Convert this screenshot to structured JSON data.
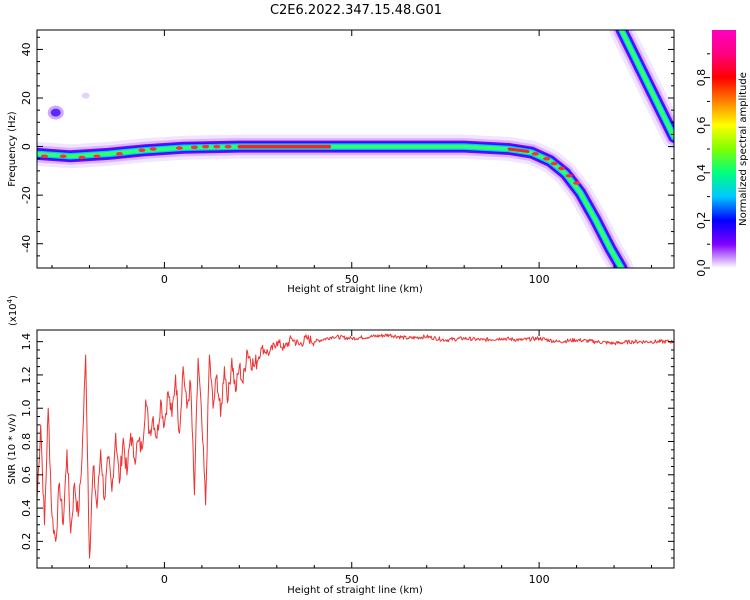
{
  "title": "C2E6.2022.347.15.48.G01",
  "chart_data": [
    {
      "type": "heatmap",
      "xlabel": "Height of straight line (km)",
      "ylabel": "Frequency (Hz)",
      "xlim": [
        -34,
        136
      ],
      "ylim": [
        -50,
        48
      ],
      "xticks": [
        0,
        50,
        100
      ],
      "yticks": [
        -40,
        -20,
        0,
        20,
        40
      ],
      "colorbar": {
        "label": "Normalized spectral amplitude",
        "range": [
          0,
          1
        ],
        "ticks": [
          "0.0",
          "0.2",
          "0.4",
          "0.6",
          "0.8"
        ],
        "colors": [
          "#ffffff",
          "#8000ff",
          "#0000ff",
          "#00c8ff",
          "#00ff80",
          "#80ff00",
          "#ffff00",
          "#ff8000",
          "#ff0000",
          "#ff0080",
          "#ff00c0"
        ]
      },
      "ridges": [
        {
          "name": "main",
          "points": [
            [
              -34,
              -3
            ],
            [
              -25,
              -4
            ],
            [
              -15,
              -3
            ],
            [
              -5,
              -1.5
            ],
            [
              5,
              -0.5
            ],
            [
              20,
              0
            ],
            [
              50,
              0
            ],
            [
              80,
              0
            ],
            [
              92,
              -1
            ],
            [
              98,
              -2.5
            ],
            [
              103,
              -6
            ],
            [
              107,
              -11
            ],
            [
              111,
              -19
            ],
            [
              115,
              -30
            ],
            [
              119,
              -42
            ],
            [
              122,
              -50
            ]
          ]
        },
        {
          "name": "upper-right",
          "points": [
            [
              122,
              48
            ],
            [
              136,
              4
            ]
          ]
        }
      ],
      "blobs": [
        {
          "x": -29,
          "y": 14,
          "amplitude": 0.2
        },
        {
          "x": -21,
          "y": 21,
          "amplitude": 0.05
        }
      ]
    },
    {
      "type": "line",
      "xlabel": "Height of straight line (km)",
      "ylabel": "SNR (10 * v/v)",
      "y_multiplier": "(x10",
      "y_multiplier_exp": "4",
      "y_multiplier_close": ")",
      "xlim": [
        -34,
        136
      ],
      "ylim": [
        0.04,
        1.47
      ],
      "xticks": [
        0,
        50,
        100
      ],
      "yticks": [
        "0.2",
        "0.4",
        "0.6",
        "0.8",
        "1.0",
        "1.2",
        "1.4"
      ],
      "series": [
        {
          "color": "#ee3333",
          "points": [
            [
              -34,
              0.45
            ],
            [
              -33,
              0.9
            ],
            [
              -32,
              0.3
            ],
            [
              -31,
              1.0
            ],
            [
              -30,
              0.35
            ],
            [
              -29,
              0.2
            ],
            [
              -28,
              0.55
            ],
            [
              -27,
              0.3
            ],
            [
              -26,
              0.75
            ],
            [
              -25,
              0.25
            ],
            [
              -24,
              0.55
            ],
            [
              -23,
              0.35
            ],
            [
              -22,
              0.7
            ],
            [
              -21,
              1.32
            ],
            [
              -20,
              0.1
            ],
            [
              -19,
              0.65
            ],
            [
              -18,
              0.4
            ],
            [
              -17,
              0.75
            ],
            [
              -16,
              0.45
            ],
            [
              -15,
              0.7
            ],
            [
              -14,
              0.5
            ],
            [
              -13,
              0.85
            ],
            [
              -12,
              0.55
            ],
            [
              -11,
              0.82
            ],
            [
              -10,
              0.6
            ],
            [
              -9,
              0.85
            ],
            [
              -8,
              0.7
            ],
            [
              -7,
              0.8
            ],
            [
              -6,
              0.75
            ],
            [
              -5,
              1.05
            ],
            [
              -4,
              0.85
            ],
            [
              -3,
              0.95
            ],
            [
              -2,
              0.82
            ],
            [
              -1,
              1.05
            ],
            [
              0,
              0.9
            ],
            [
              1,
              1.1
            ],
            [
              2,
              0.95
            ],
            [
              3,
              1.2
            ],
            [
              4,
              0.85
            ],
            [
              5,
              1.25
            ],
            [
              6,
              1.0
            ],
            [
              7,
              1.15
            ],
            [
              8,
              0.48
            ],
            [
              9,
              1.3
            ],
            [
              10,
              0.9
            ],
            [
              11,
              0.42
            ],
            [
              12,
              1.32
            ],
            [
              13,
              1.0
            ],
            [
              14,
              1.2
            ],
            [
              15,
              0.95
            ],
            [
              16,
              1.25
            ],
            [
              17,
              1.05
            ],
            [
              18,
              1.3
            ],
            [
              19,
              1.1
            ],
            [
              20,
              1.25
            ],
            [
              21,
              1.15
            ],
            [
              22,
              1.35
            ],
            [
              24,
              1.25
            ],
            [
              26,
              1.36
            ],
            [
              28,
              1.33
            ],
            [
              30,
              1.4
            ],
            [
              32,
              1.36
            ],
            [
              34,
              1.42
            ],
            [
              36,
              1.38
            ],
            [
              38,
              1.42
            ],
            [
              40,
              1.4
            ],
            [
              45,
              1.43
            ],
            [
              50,
              1.42
            ],
            [
              55,
              1.43
            ],
            [
              60,
              1.44
            ],
            [
              65,
              1.42
            ],
            [
              70,
              1.43
            ],
            [
              75,
              1.41
            ],
            [
              80,
              1.42
            ],
            [
              85,
              1.41
            ],
            [
              90,
              1.42
            ],
            [
              95,
              1.41
            ],
            [
              100,
              1.42
            ],
            [
              105,
              1.4
            ],
            [
              110,
              1.41
            ],
            [
              115,
              1.4
            ],
            [
              120,
              1.39
            ],
            [
              125,
              1.4
            ],
            [
              130,
              1.4
            ],
            [
              136,
              1.4
            ]
          ]
        }
      ]
    }
  ]
}
